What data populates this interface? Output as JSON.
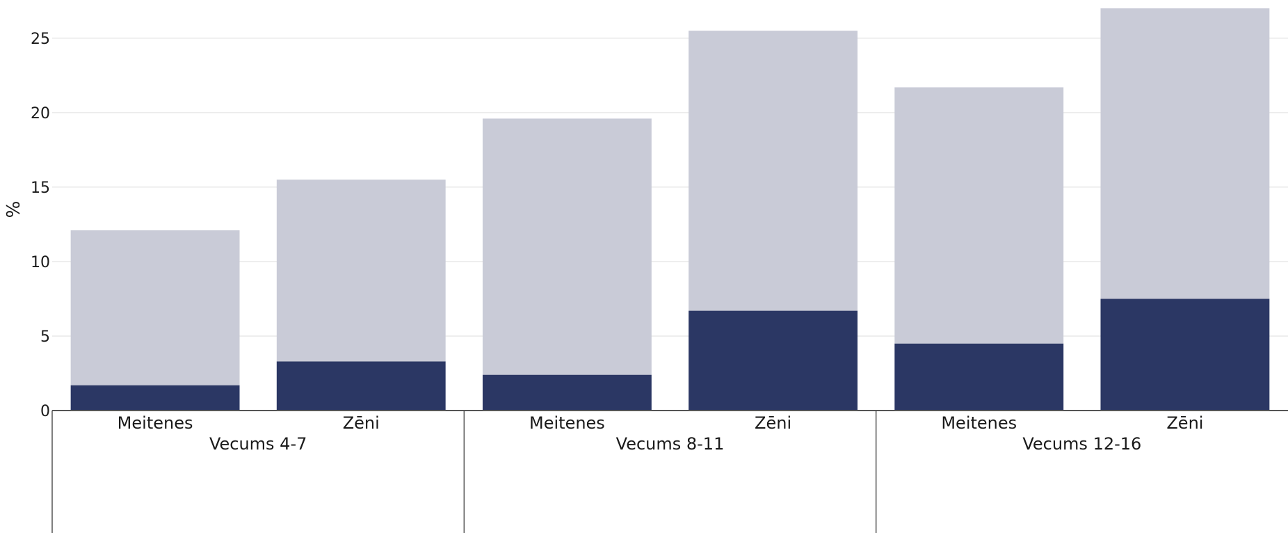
{
  "chart_data": {
    "type": "bar",
    "stacked": true,
    "ylabel": "%",
    "ylim": [
      0,
      27
    ],
    "yticks": [
      0,
      5,
      10,
      15,
      20,
      25
    ],
    "grid": true,
    "groups": [
      {
        "label": "Vecums 4-7",
        "categories": [
          "Meitenes",
          "Zēni"
        ]
      },
      {
        "label": "Vecums 8-11",
        "categories": [
          "Meitenes",
          "Zēni"
        ]
      },
      {
        "label": "Vecums 12-16",
        "categories": [
          "Meitenes",
          "Zēni"
        ]
      }
    ],
    "categories": [
      "Meitenes",
      "Zēni",
      "Meitenes",
      "Zēni",
      "Meitenes",
      "Zēni"
    ],
    "series": [
      {
        "values": [
          1.7,
          3.3,
          2.4,
          6.7,
          4.5,
          7.5
        ],
        "color": "#2b3764"
      },
      {
        "values": [
          10.4,
          12.2,
          17.2,
          18.8,
          17.2,
          19.5
        ],
        "color": "#c9cbd7"
      }
    ],
    "colors": {
      "grid": "#e9e9e9",
      "axis": "#555555",
      "text": "#1a1a1a"
    }
  }
}
